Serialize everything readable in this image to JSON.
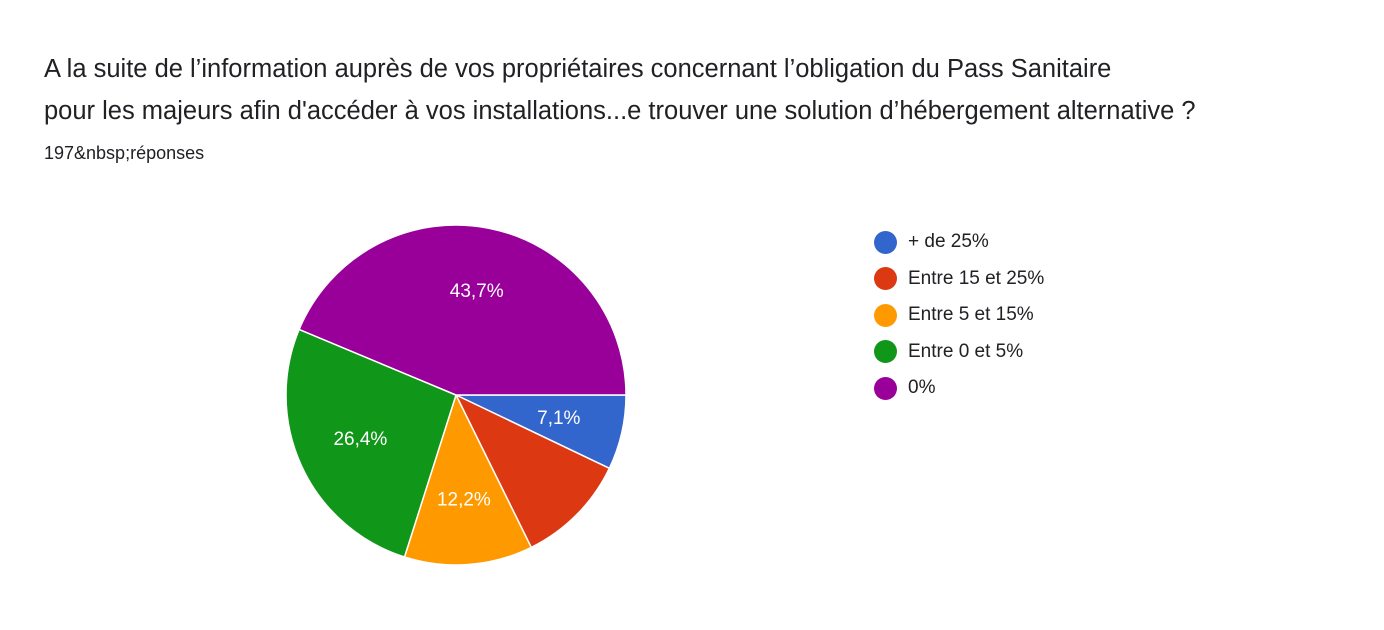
{
  "question": {
    "title_line1": "A la suite de l’information auprès de vos propriétaires concernant l’obligation du Pass Sanitaire",
    "title_line2": "pour les majeurs afin d'accéder à vos installations...e trouver une solution d’hébergement alternative ?",
    "response_count": "197&nbsp;réponses"
  },
  "chart_data": {
    "type": "pie",
    "title": "",
    "slices": [
      {
        "label": "+ de 25%",
        "value": 7.1,
        "display": "7,1%",
        "color": "#3366cc",
        "show_label": true
      },
      {
        "label": "Entre 15 et 25%",
        "value": 10.6,
        "display": "",
        "color": "#dc3912",
        "show_label": false
      },
      {
        "label": "Entre 5 et 15%",
        "value": 12.2,
        "display": "12,2%",
        "color": "#ff9900",
        "show_label": true
      },
      {
        "label": "Entre 0 et 5%",
        "value": 26.4,
        "display": "26,4%",
        "color": "#109618",
        "show_label": true
      },
      {
        "label": "0%",
        "value": 43.7,
        "display": "43,7%",
        "color": "#990099",
        "show_label": true
      }
    ],
    "start_direction": "east",
    "direction": "clockwise",
    "legend_position": "right"
  }
}
